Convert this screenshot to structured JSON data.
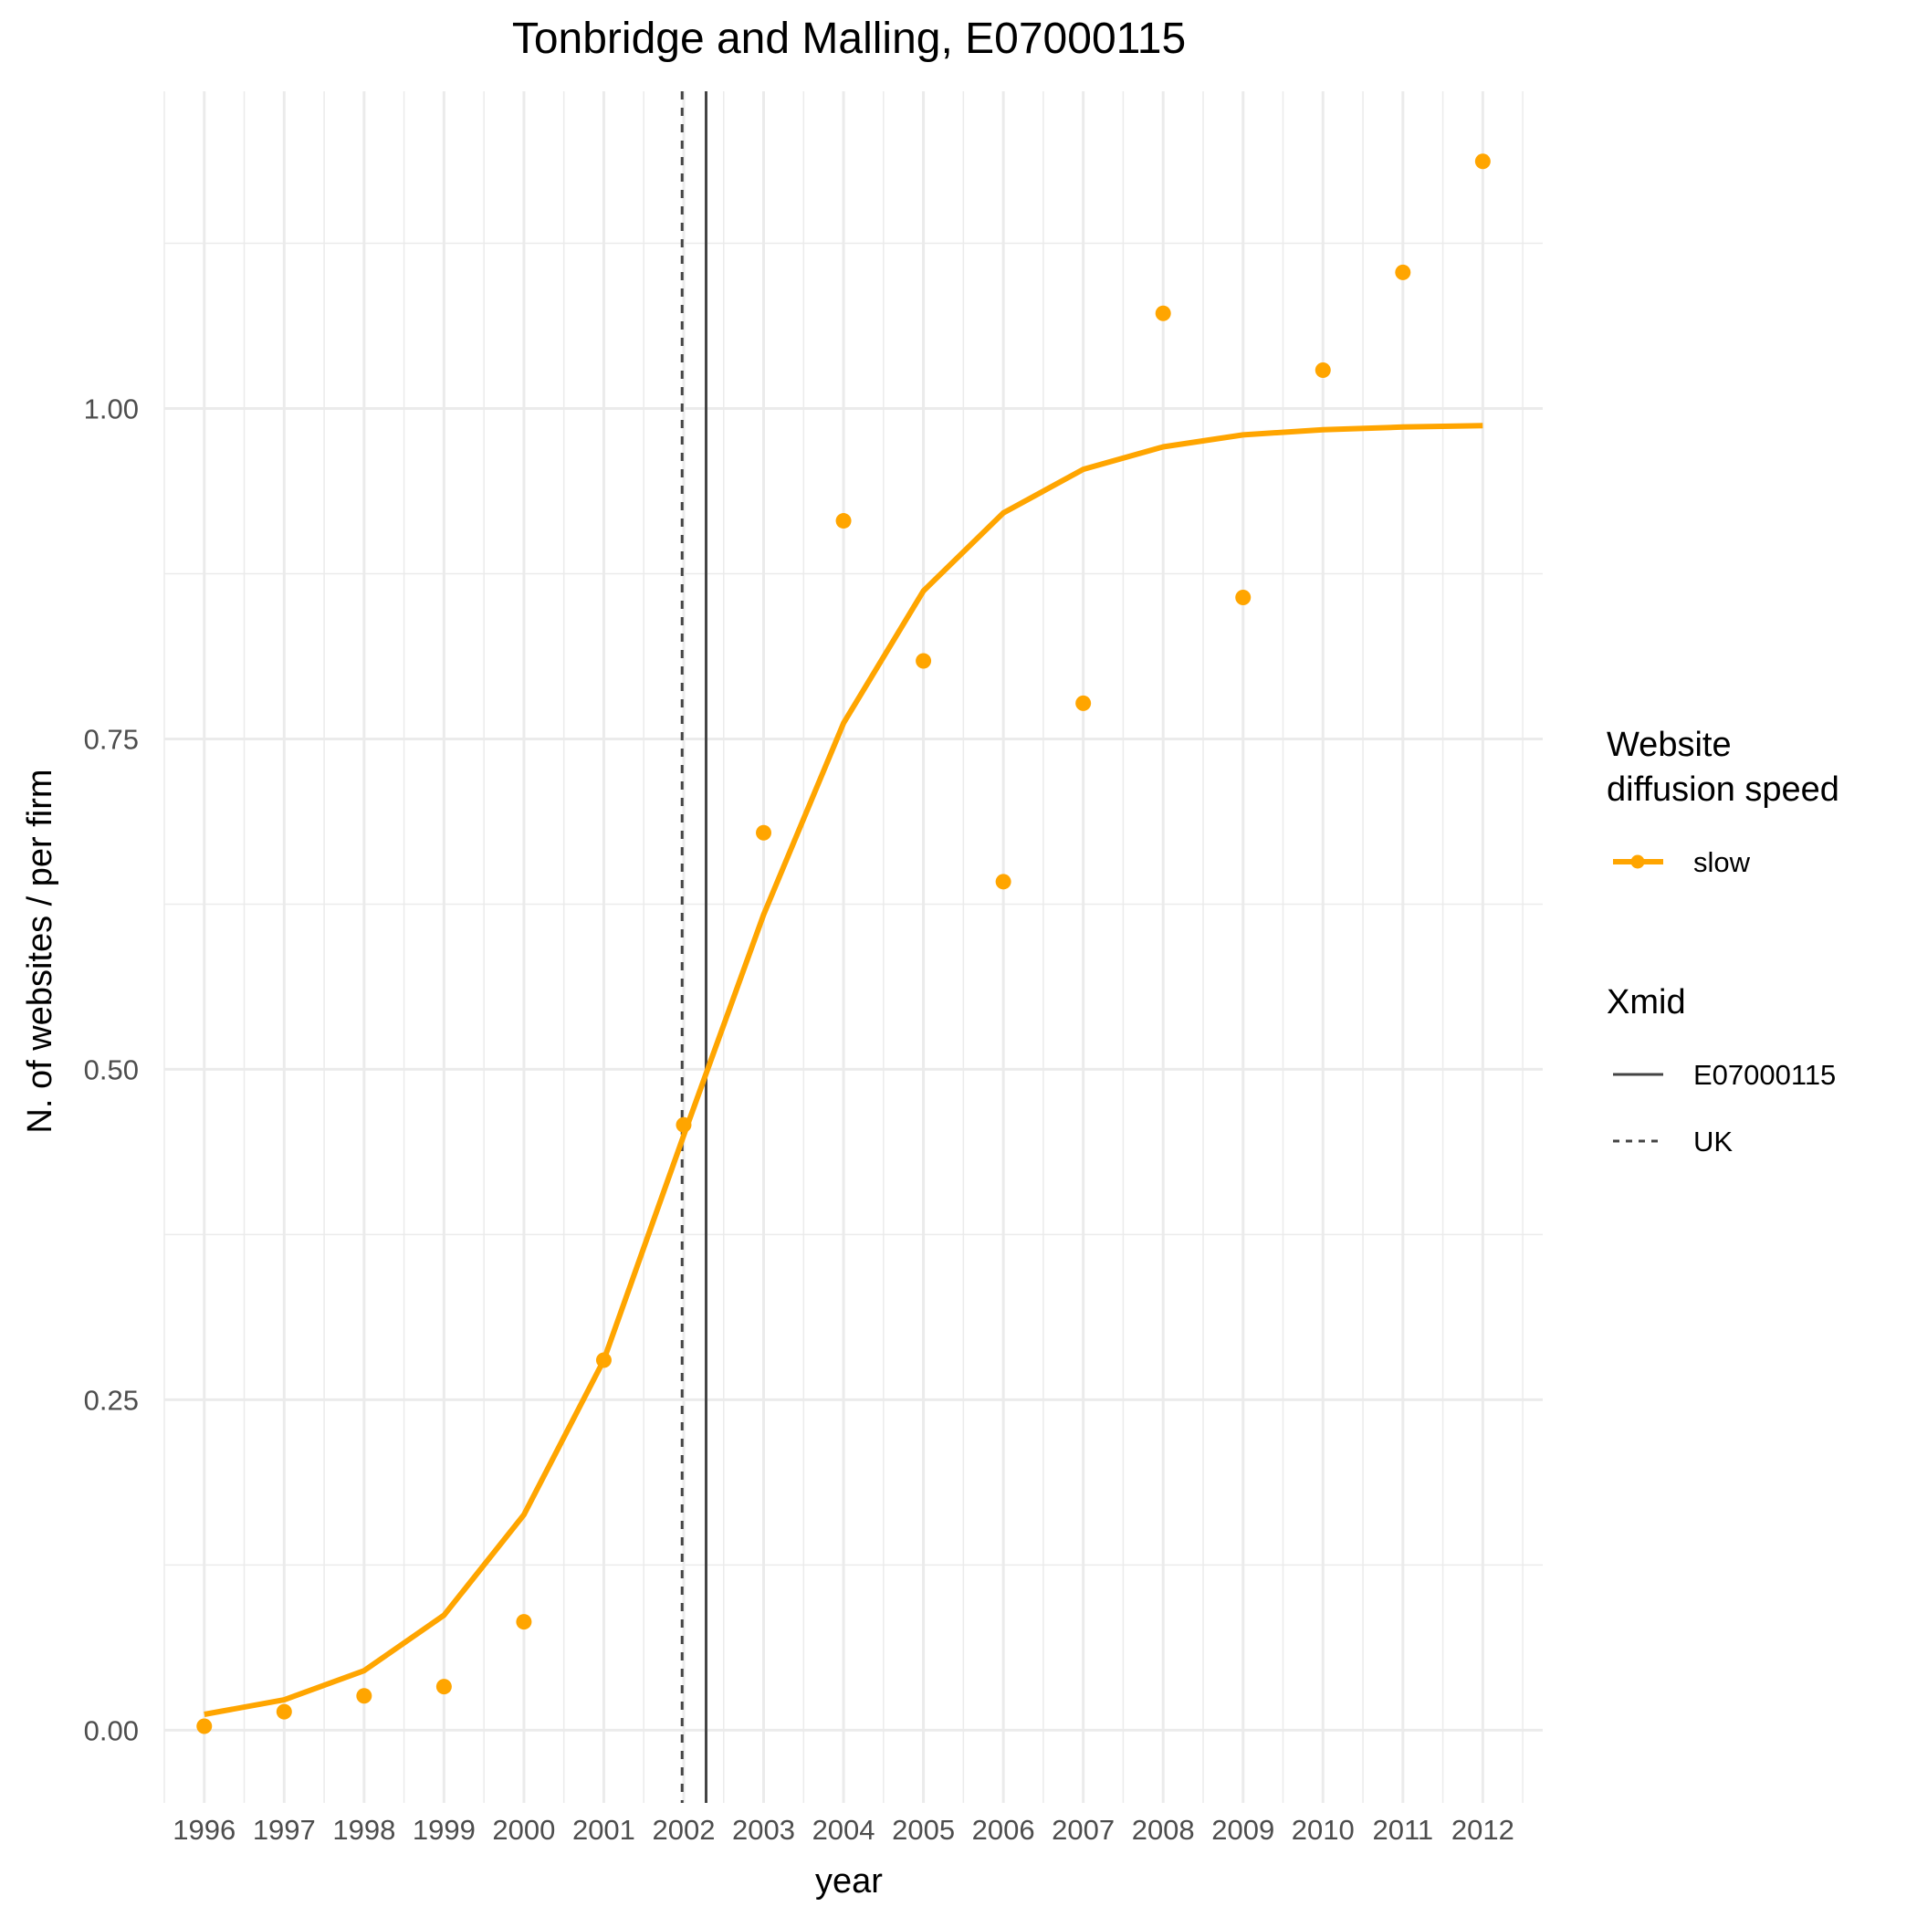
{
  "chart_data": {
    "type": "line",
    "title": "Tonbridge and Malling, E07000115",
    "xlabel": "year",
    "ylabel": "N. of websites / per firm",
    "x": [
      1996,
      1997,
      1998,
      1999,
      2000,
      2001,
      2002,
      2003,
      2004,
      2005,
      2006,
      2007,
      2008,
      2009,
      2010,
      2011,
      2012
    ],
    "x_tick_labels": [
      "1996",
      "1997",
      "1998",
      "1999",
      "2000",
      "2001",
      "2002",
      "2003",
      "2004",
      "2005",
      "2006",
      "2007",
      "2008",
      "2009",
      "2010",
      "2011",
      "2012"
    ],
    "y_ticks": [
      0,
      0.25,
      0.5,
      0.75,
      1.0
    ],
    "y_tick_labels": [
      "0.00",
      "0.25",
      "0.50",
      "0.75",
      "1.00"
    ],
    "xlim": [
      1995.5,
      2012.75
    ],
    "ylim": [
      -0.055,
      1.24
    ],
    "grid": true,
    "series": [
      {
        "name": "slow",
        "color": "#FFA500",
        "points": [
          0.003,
          0.014,
          0.026,
          0.033,
          0.082,
          0.28,
          0.458,
          0.679,
          0.915,
          0.809,
          0.642,
          0.777,
          1.072,
          0.857,
          1.029,
          1.103,
          1.187
        ],
        "fitted": [
          0.012,
          0.023,
          0.045,
          0.087,
          0.163,
          0.28,
          0.45,
          0.617,
          0.762,
          0.862,
          0.921,
          0.954,
          0.971,
          0.98,
          0.984,
          0.986,
          0.987
        ]
      }
    ],
    "vlines": [
      {
        "name": "E07000115",
        "x": 2002.28,
        "style": "solid",
        "color": "#444444"
      },
      {
        "name": "UK",
        "x": 2001.98,
        "style": "dashed",
        "color": "#444444"
      }
    ],
    "legend": {
      "placement": "right",
      "groups": [
        {
          "title_lines": [
            "Website",
            "diffusion speed"
          ],
          "items": [
            {
              "label": "slow",
              "kind": "line-point",
              "color": "#FFA500"
            }
          ]
        },
        {
          "title_lines": [
            "Xmid"
          ],
          "items": [
            {
              "label": "E07000115",
              "kind": "solid",
              "color": "#444444"
            },
            {
              "label": "UK",
              "kind": "dashed",
              "color": "#444444"
            }
          ]
        }
      ]
    }
  }
}
